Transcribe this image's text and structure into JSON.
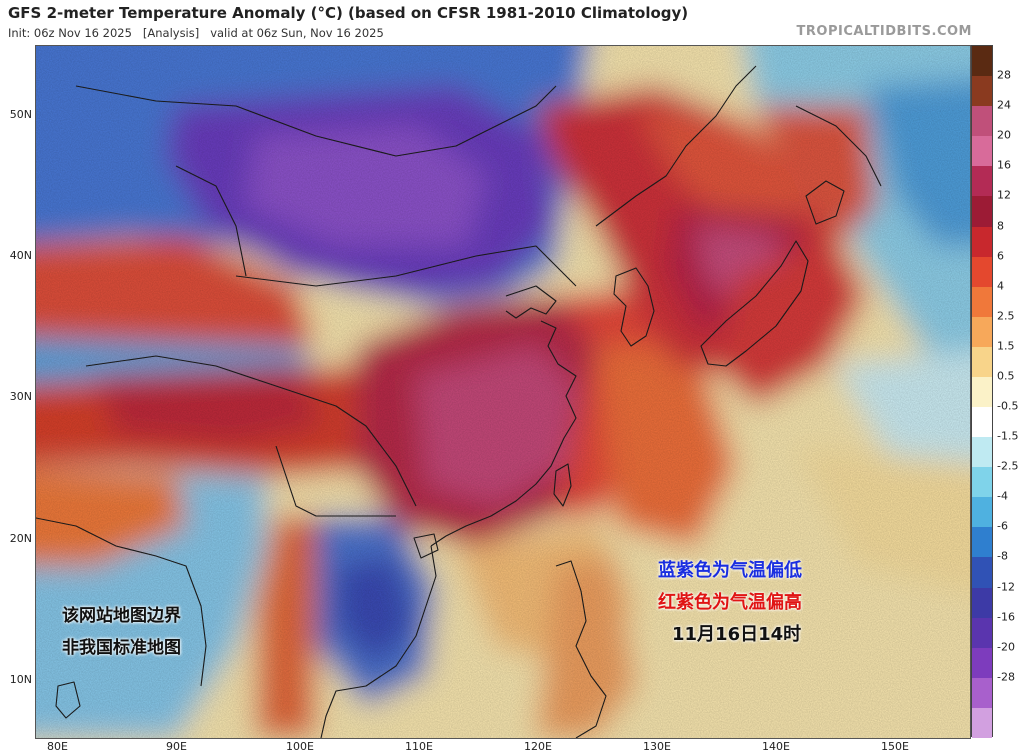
{
  "header": {
    "title": "GFS 2-meter Temperature Anomaly (°C) (based on CFSR 1981-2010 Climatology)",
    "init": "Init: 06z Nov 16 2025",
    "analysis": "[Analysis]",
    "valid": "valid at 06z Sun, Nov 16 2025",
    "site": "TROPICALTIDBITS.COM"
  },
  "map": {
    "lat_labels": [
      "50N",
      "40N",
      "30N",
      "20N",
      "10N"
    ],
    "lon_labels": [
      "80E",
      "90E",
      "100E",
      "110E",
      "120E",
      "130E",
      "140E",
      "150E"
    ],
    "lat_range": [
      5.8,
      55.2
    ],
    "lon_range": [
      78,
      156.5
    ]
  },
  "colorbar": {
    "labels": [
      "28",
      "24",
      "20",
      "16",
      "12",
      "8",
      "6",
      "4",
      "2.5",
      "1.5",
      "0.5",
      "-0.5",
      "-1.5",
      "-2.5",
      "-4",
      "-6",
      "-8",
      "-12",
      "-16",
      "-20",
      "-28"
    ],
    "colors": [
      "#5a2a12",
      "#8a3a1f",
      "#c0507a",
      "#d86b9a",
      "#b32b55",
      "#9c1b35",
      "#c8282d",
      "#e4482e",
      "#f0783a",
      "#f7a85a",
      "#f8d48a",
      "#fbf2c8",
      "#ffffff",
      "#bfeaf2",
      "#7fd3ea",
      "#4fb1e0",
      "#2f7fcf",
      "#3052b5",
      "#3d3aa6",
      "#5a35ae",
      "#7d3cbd",
      "#a860cc",
      "#d2a0e0"
    ]
  },
  "annotations": {
    "blue_text": "蓝紫色为气温偏低",
    "red_text": "红紫色为气温偏高",
    "time_text": "11月16日14时",
    "disclaimer_line1": "该网站地图边界",
    "disclaimer_line2": "非我国标准地图"
  }
}
